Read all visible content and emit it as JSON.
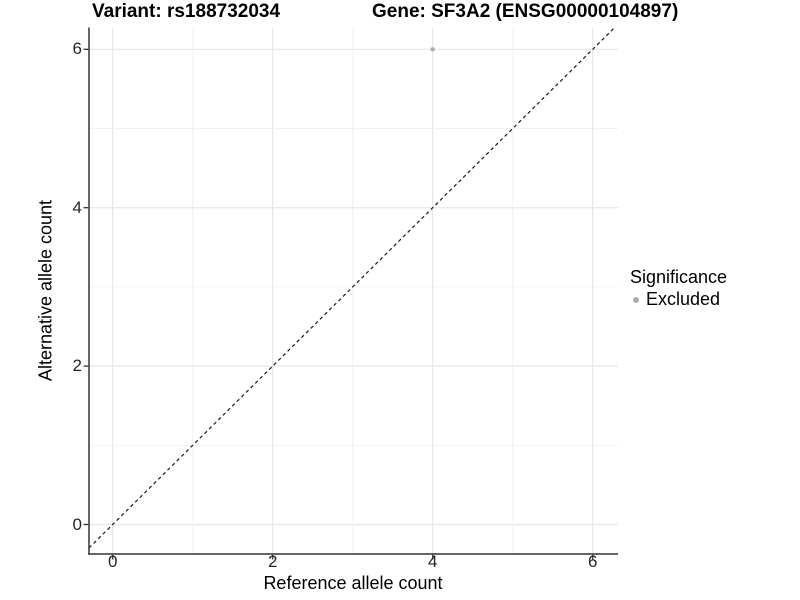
{
  "chart_data": {
    "type": "scatter",
    "title_left": "Variant: rs188732034",
    "title_right": "Gene: SF3A2 (ENSG00000104897)",
    "xlabel": "Reference allele count",
    "ylabel": "Alternative allele count",
    "xlim": [
      -0.3,
      6.3
    ],
    "ylim": [
      -0.37,
      6.27
    ],
    "xticks": [
      0,
      2,
      4,
      6
    ],
    "yticks": [
      0,
      2,
      4,
      6
    ],
    "xtick_labels": [
      "0",
      "2",
      "4",
      "6"
    ],
    "ytick_labels": [
      "0",
      "2",
      "4",
      "6"
    ],
    "grid": {
      "integer_lines": [
        0,
        1,
        2,
        3,
        4,
        5,
        6
      ],
      "major_at": [
        0,
        2,
        4,
        6
      ],
      "on": true
    },
    "series": [
      {
        "name": "Excluded",
        "color": "#ababab",
        "marker": "circle",
        "points": [
          {
            "x": 4,
            "y": 6
          }
        ]
      }
    ],
    "reference_line": {
      "kind": "identity",
      "equation": "y = x",
      "style": "dashed",
      "color": "#1a1a1a"
    },
    "legend": {
      "position": "right",
      "title": "Significance",
      "entries": [
        {
          "label": "Excluded",
          "color": "#ababab"
        }
      ]
    }
  },
  "colors": {
    "background": "#ffffff",
    "axis_line": "#333333",
    "tick_mark": "#333333",
    "tick_text": "#262626",
    "grid_major": "#e7e7e7",
    "grid_minor": "#f1f1f1",
    "point_fill": "#ababab",
    "reference_line": "#1a1a1a"
  }
}
